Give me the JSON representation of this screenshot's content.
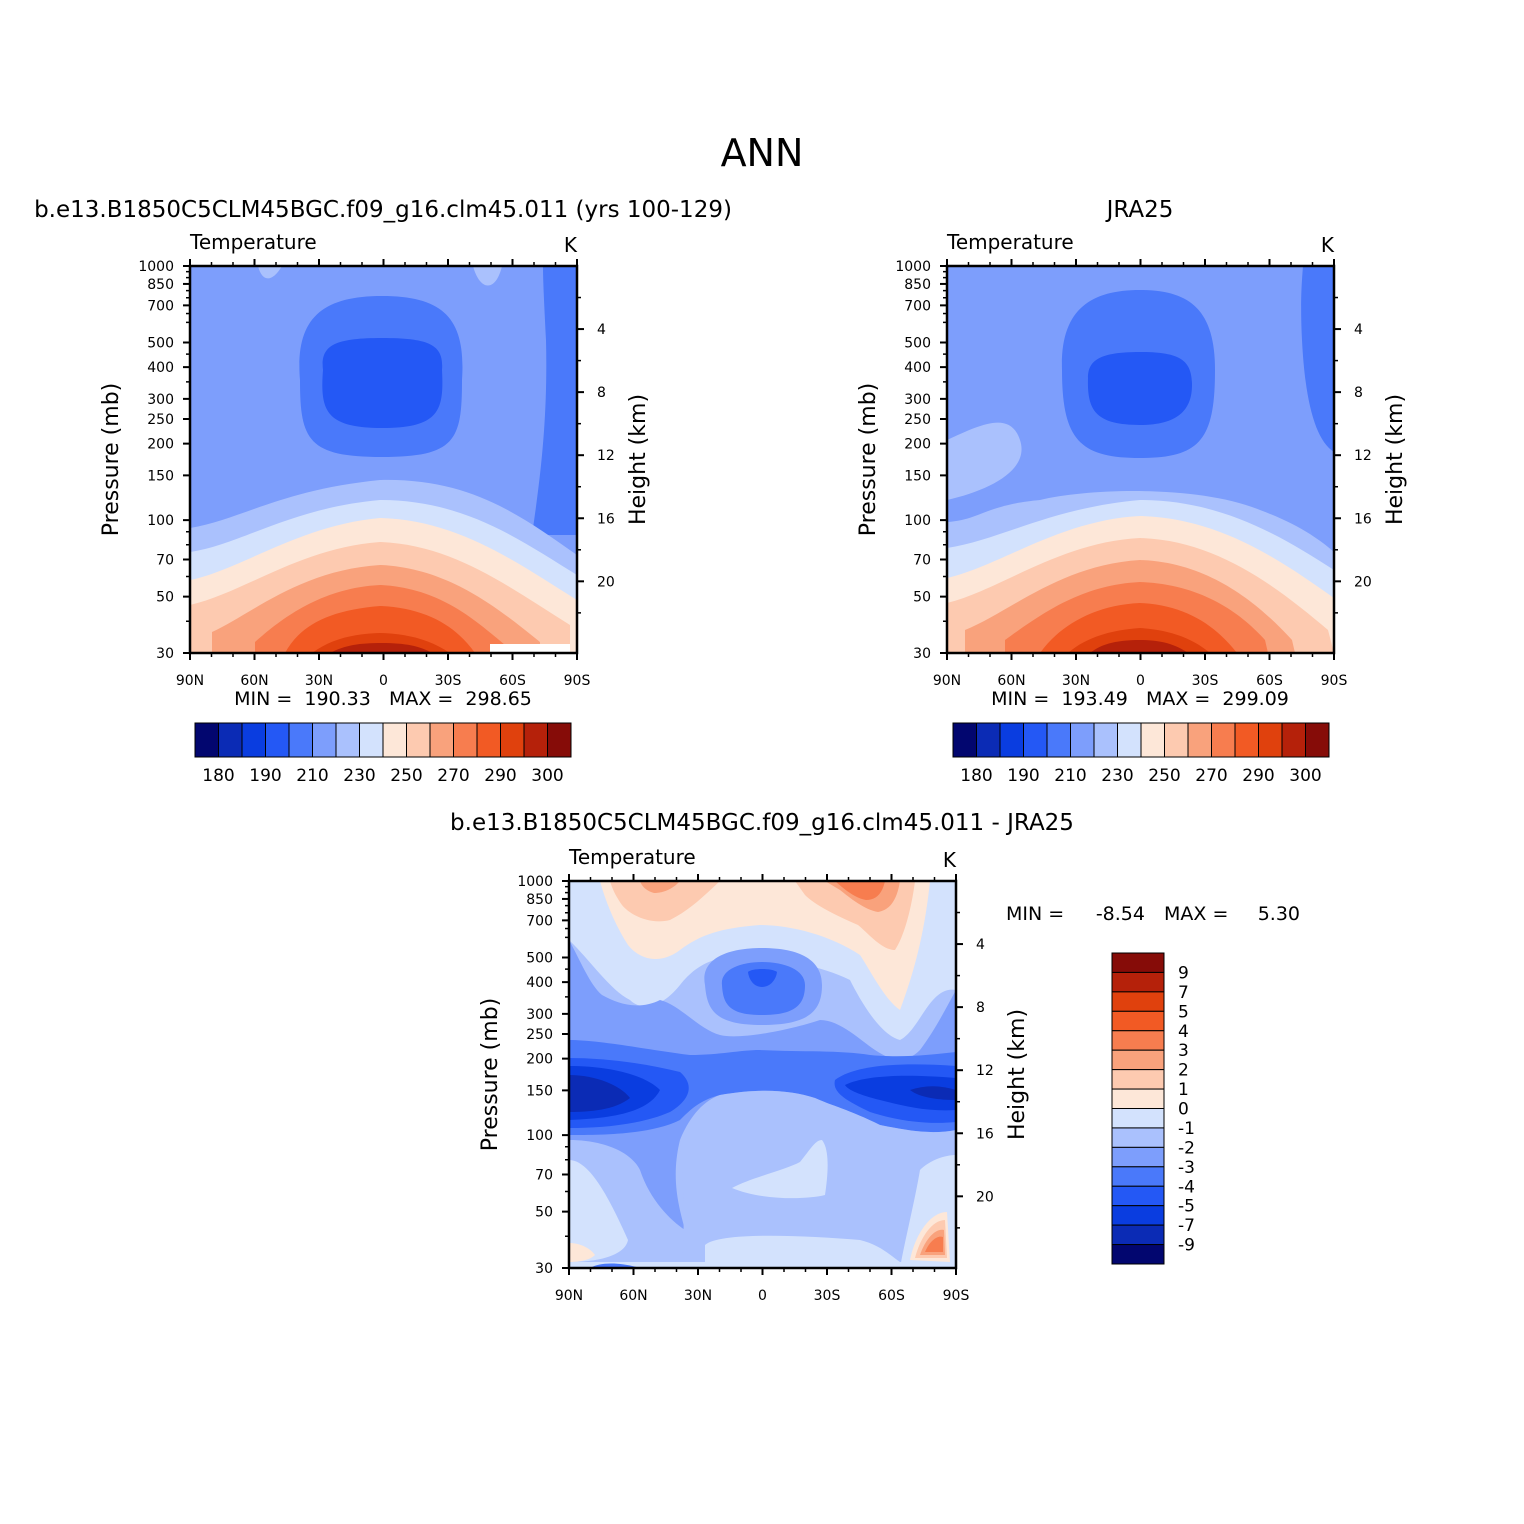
{
  "figure": {
    "title": "ANN",
    "colors": {
      "full_levels": [
        "#02066f",
        "#0b2bb5",
        "#0a3de0",
        "#2458f5",
        "#4a79fa",
        "#7d9efc",
        "#aac1fd",
        "#d3e2fd",
        "#fde7d8",
        "#fdcab0",
        "#f9a27c",
        "#f77d4f",
        "#f25a24",
        "#e0410d",
        "#b5210a",
        "#860c08"
      ],
      "diff_levels": [
        "#02066f",
        "#0b2bb5",
        "#0a3de0",
        "#2458f5",
        "#4a79fa",
        "#7d9efc",
        "#aac1fd",
        "#d3e2fd",
        "#fde7d8",
        "#fdcab0",
        "#f9a27c",
        "#f77d4f",
        "#f25a24",
        "#e0410d",
        "#b5210a",
        "#860c08"
      ]
    }
  },
  "panels": [
    {
      "id": "model",
      "title": "b.e13.B1850C5CLM45BGC.f09_g16.clm45.011 (yrs 100-129)",
      "subtitle_left": "Temperature",
      "subtitle_right": "K",
      "min_max_text": "MIN =  190.33   MAX =  298.65",
      "colorbar_labels": [
        "180",
        "190",
        "210",
        "230",
        "250",
        "270",
        "290",
        "300"
      ]
    },
    {
      "id": "obs",
      "title": "JRA25",
      "subtitle_left": "Temperature",
      "subtitle_right": "K",
      "min_max_text": "MIN =  193.49   MAX =  299.09",
      "colorbar_labels": [
        "180",
        "190",
        "210",
        "230",
        "250",
        "270",
        "290",
        "300"
      ]
    },
    {
      "id": "diff",
      "title": "b.e13.B1850C5CLM45BGC.f09_g16.clm45.011 - JRA25",
      "subtitle_left": "Temperature",
      "subtitle_right": "K",
      "min_label": "MIN =",
      "min_value": "-8.54",
      "max_label": "MAX =",
      "max_value": "5.30",
      "colorbar_labels": [
        "9",
        "7",
        "5",
        "4",
        "3",
        "2",
        "1",
        "0",
        "-1",
        "-2",
        "-3",
        "-4",
        "-5",
        "-7",
        "-9"
      ]
    }
  ],
  "chart_data": [
    {
      "type": "heatmap",
      "name": "model temperature zonal mean",
      "title": "b.e13.B1850C5CLM45BGC.f09_g16.clm45.011 (yrs 100-129)",
      "xlabel": "",
      "ylabel": "Pressure (mb)",
      "y2label": "Height (km)",
      "x_ticks": [
        "90N",
        "60N",
        "30N",
        "0",
        "30S",
        "60S",
        "90S"
      ],
      "y_ticks": [
        30,
        50,
        70,
        100,
        150,
        200,
        250,
        300,
        400,
        500,
        700,
        850,
        1000
      ],
      "y2_ticks": [
        20,
        16,
        12,
        8,
        4
      ],
      "levels": [
        180,
        190,
        200,
        210,
        220,
        230,
        240,
        250,
        260,
        270,
        280,
        290,
        295,
        300
      ],
      "min": 190.33,
      "max": 298.65
    },
    {
      "type": "heatmap",
      "name": "JRA25 temperature zonal mean",
      "title": "JRA25",
      "xlabel": "",
      "ylabel": "Pressure (mb)",
      "y2label": "Height (km)",
      "x_ticks": [
        "90N",
        "60N",
        "30N",
        "0",
        "30S",
        "60S",
        "90S"
      ],
      "y_ticks": [
        30,
        50,
        70,
        100,
        150,
        200,
        250,
        300,
        400,
        500,
        700,
        850,
        1000
      ],
      "y2_ticks": [
        20,
        16,
        12,
        8,
        4
      ],
      "levels": [
        180,
        190,
        200,
        210,
        220,
        230,
        240,
        250,
        260,
        270,
        280,
        290,
        295,
        300
      ],
      "min": 193.49,
      "max": 299.09
    },
    {
      "type": "heatmap",
      "name": "model minus JRA25 temperature difference",
      "title": "b.e13.B1850C5CLM45BGC.f09_g16.clm45.011 - JRA25",
      "xlabel": "",
      "ylabel": "Pressure (mb)",
      "y2label": "Height (km)",
      "x_ticks": [
        "90N",
        "60N",
        "30N",
        "0",
        "30S",
        "60S",
        "90S"
      ],
      "y_ticks": [
        30,
        50,
        70,
        100,
        150,
        200,
        250,
        300,
        400,
        500,
        700,
        850,
        1000
      ],
      "y2_ticks": [
        20,
        16,
        12,
        8,
        4
      ],
      "levels": [
        -9,
        -7,
        -5,
        -4,
        -3,
        -2,
        -1,
        0,
        1,
        2,
        3,
        4,
        5,
        7,
        9
      ],
      "min": -8.54,
      "max": 5.3
    }
  ],
  "axes": {
    "ylabel": "Pressure (mb)",
    "y2label": "Height (km)",
    "x_ticks": [
      "90N",
      "60N",
      "30N",
      "0",
      "30S",
      "60S",
      "90S"
    ],
    "y_ticks": [
      "30",
      "50",
      "70",
      "100",
      "150",
      "200",
      "250",
      "300",
      "400",
      "500",
      "700",
      "850",
      "1000"
    ],
    "y2_ticks": [
      "20",
      "16",
      "12",
      "8",
      "4"
    ]
  }
}
